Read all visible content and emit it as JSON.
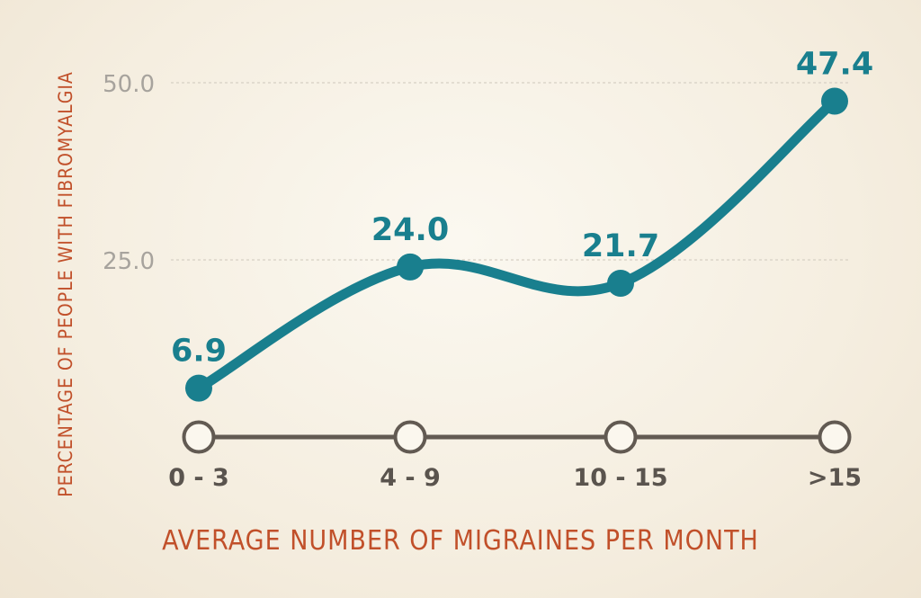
{
  "chart_data": {
    "type": "line",
    "categories": [
      "0 - 3",
      "4 - 9",
      "10 - 15",
      ">15"
    ],
    "values": [
      6.9,
      24.0,
      21.7,
      47.4
    ],
    "data_labels": [
      "6.9",
      "24.0",
      "21.7",
      "47.4"
    ],
    "yticks": [
      "25.0",
      "50.0"
    ],
    "ylim": [
      0,
      50
    ],
    "xlabel": "AVERAGE NUMBER OF MIGRAINES PER MONTH",
    "ylabel": "PERCENTAGE OF PEOPLE WITH FIBROMYALGIA",
    "grid": "dashed horizontal at 25 and 50",
    "colors": {
      "line": "#197f8e",
      "labels": "#197f8e",
      "axis_titles": "#c1502a",
      "baseline": "#625a52",
      "ticks": "#a7a39d",
      "category_labels": "#5a544e"
    }
  }
}
